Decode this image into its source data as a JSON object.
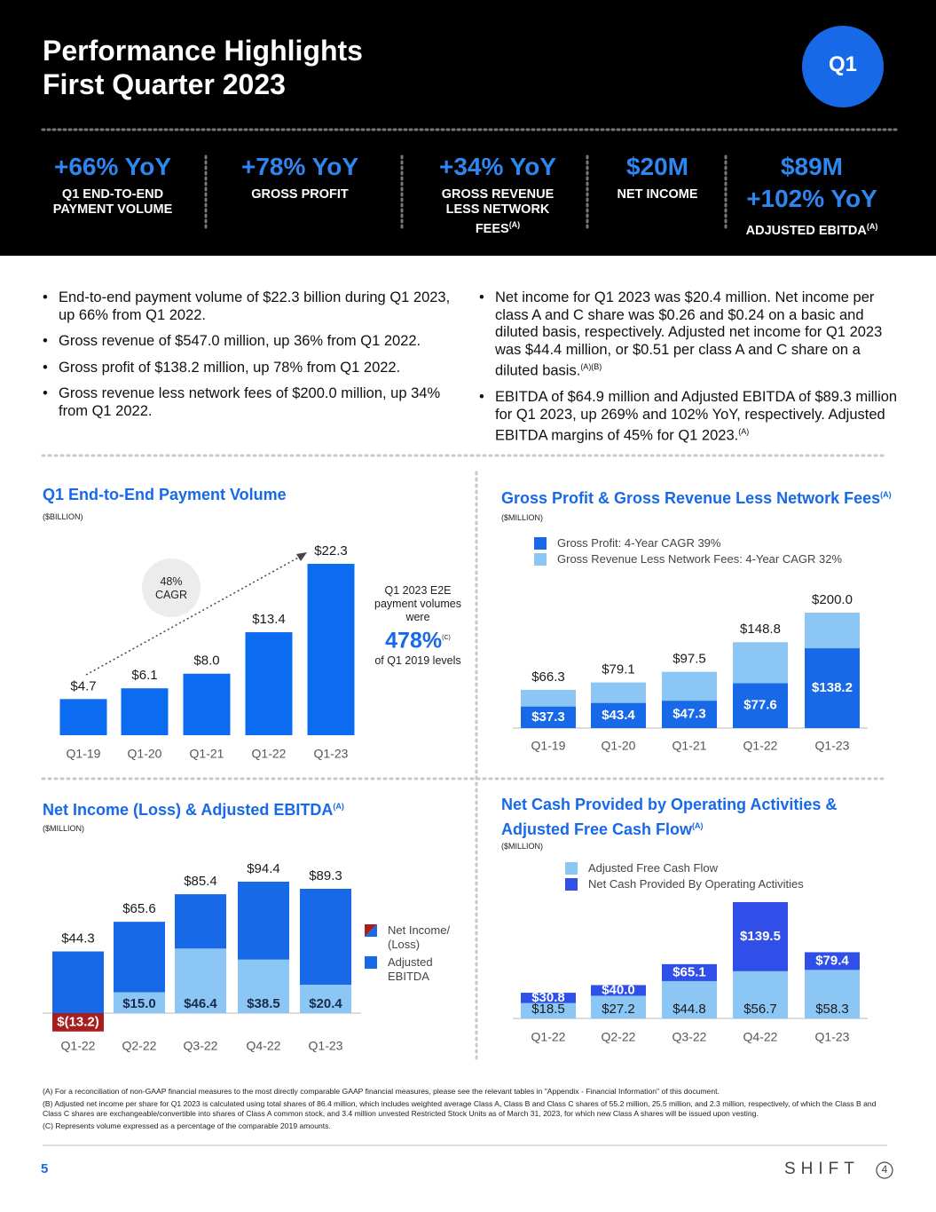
{
  "header": {
    "title": [
      "Performance Highlights",
      "First Quarter 2023"
    ],
    "badge": "Q1"
  },
  "kpis": [
    {
      "values": [
        "+66% YoY"
      ],
      "label": "Q1 END-TO-END PAYMENT VOLUME"
    },
    {
      "values": [
        "+78% YoY"
      ],
      "label": "GROSS PROFIT"
    },
    {
      "values": [
        "+34% YoY"
      ],
      "label": "GROSS REVENUE LESS NETWORK FEES",
      "sup": "(A)"
    },
    {
      "values": [
        "$20M"
      ],
      "label": "NET INCOME"
    },
    {
      "values": [
        "$89M",
        "+102% YoY"
      ],
      "label": "ADJUSTED EBITDA",
      "sup": "(A)"
    }
  ],
  "bullets": {
    "left": [
      {
        "text": "End-to-end payment volume of $22.3 billion during Q1 2023, up 66% from Q1 2022."
      },
      {
        "text": "Gross revenue of $547.0 million, up 36% from Q1 2022."
      },
      {
        "text": "Gross profit of $138.2 million, up 78% from Q1 2022."
      },
      {
        "text": "Gross revenue less network fees of $200.0 million, up 34% from Q1 2022."
      }
    ],
    "right": [
      {
        "text": "Net income for Q1 2023 was $20.4 million. Net income per class A and C share was $0.26 and $0.24 on a basic and diluted basis, respectively. Adjusted net income for Q1 2023 was $44.4 million, or $0.51 per class A and C share on a diluted basis.",
        "sup": "(A)(B)"
      },
      {
        "text": "EBITDA of $64.9 million and Adjusted EBITDA of $89.3 million for Q1 2023, up 269% and 102% YoY, respectively. Adjusted EBITDA margins of 45% for Q1 2023.",
        "sup": "(A)"
      }
    ]
  },
  "chart_data": [
    {
      "type": "bar",
      "title": "Q1 End-to-End Payment Volume",
      "subtitle": "($BILLION)",
      "categories": [
        "Q1-19",
        "Q1-20",
        "Q1-21",
        "Q1-22",
        "Q1-23"
      ],
      "values": [
        4.7,
        6.1,
        8.0,
        13.4,
        22.3
      ],
      "value_labels": [
        "$4.7",
        "$6.1",
        "$8.0",
        "$13.4",
        "$22.3"
      ],
      "color": "#0b6cf2",
      "cagr_label": [
        "48%",
        "CAGR"
      ],
      "callout": {
        "text": "Q1 2023 E2E payment volumes were",
        "highlight": "478%",
        "highlight_note": "(C)",
        "after": "of Q1 2019 levels"
      }
    },
    {
      "type": "bar",
      "title": "Gross Profit & Gross Revenue Less Network Fees",
      "title_sup": "(A)",
      "subtitle": "($MILLION)",
      "categories": [
        "Q1-19",
        "Q1-20",
        "Q1-21",
        "Q1-22",
        "Q1-23"
      ],
      "series": [
        {
          "name": "Gross Profit: 4-Year CAGR 39%",
          "color": "#1769e8",
          "values": [
            37.3,
            43.4,
            47.3,
            77.6,
            138.2
          ],
          "value_labels": [
            "$37.3",
            "$43.4",
            "$47.3",
            "$77.6",
            "$138.2"
          ]
        },
        {
          "name": "Gross Revenue Less Network Fees: 4-Year CAGR 32%",
          "color": "#8cc6f5",
          "values": [
            66.3,
            79.1,
            97.5,
            148.8,
            200.0
          ],
          "value_labels": [
            "$66.3",
            "$79.1",
            "$97.5",
            "$148.8",
            "$200.0"
          ]
        }
      ]
    },
    {
      "type": "bar",
      "title": "Net Income (Loss) & Adjusted EBITDA",
      "title_sup": "(A)",
      "subtitle": "($MILLION)",
      "categories": [
        "Q1-22",
        "Q2-22",
        "Q3-22",
        "Q4-22",
        "Q1-23"
      ],
      "series": [
        {
          "name": "Net Income/ (Loss)",
          "color": "#8cc6f5",
          "negative_color": "#a81d1d",
          "values": [
            -13.2,
            15.0,
            46.4,
            38.5,
            20.4
          ],
          "value_labels": [
            "$(13.2)",
            "$15.0",
            "$46.4",
            "$38.5",
            "$20.4"
          ]
        },
        {
          "name": "Adjusted EBITDA",
          "color": "#1769e8",
          "values": [
            44.3,
            65.6,
            85.4,
            94.4,
            89.3
          ],
          "value_labels": [
            "$44.3",
            "$65.6",
            "$85.4",
            "$94.4",
            "$89.3"
          ]
        }
      ]
    },
    {
      "type": "bar",
      "title": "Net Cash Provided by Operating Activities & Adjusted Free Cash Flow",
      "title_sup": "(A)",
      "subtitle": "($MILLION)",
      "categories": [
        "Q1-22",
        "Q2-22",
        "Q3-22",
        "Q4-22",
        "Q1-23"
      ],
      "series": [
        {
          "name": "Adjusted Free Cash Flow",
          "color": "#8cc6f5",
          "values": [
            18.5,
            27.2,
            44.8,
            56.7,
            58.3
          ],
          "value_labels": [
            "$18.5",
            "$27.2",
            "$44.8",
            "$56.7",
            "$58.3"
          ]
        },
        {
          "name": "Net Cash Provided By Operating Activities",
          "color": "#2f4fe8",
          "values": [
            30.8,
            40.0,
            65.1,
            139.5,
            79.4
          ],
          "value_labels": [
            "$30.8",
            "$40.0",
            "$65.1",
            "$139.5",
            "$79.4"
          ]
        }
      ]
    }
  ],
  "footnotes": [
    "(A) For a reconciliation of non-GAAP financial measures to the most directly comparable GAAP financial measures, please see the relevant tables in \"Appendix - Financial Information\" of this document.",
    "(B) Adjusted net income per share for Q1 2023 is calculated using total shares of 86.4 million, which includes weighted average Class A, Class B and Class C shares of 55.2 million, 25.5 million, and 2.3 million, respectively, of which the Class B and Class C shares are exchangeable/convertible into shares of Class A common stock, and 3.4 million unvested Restricted Stock Units as of March 31, 2023, for which new Class A shares will be issued upon vesting.",
    "(C) Represents volume expressed as a percentage of the comparable 2019 amounts."
  ],
  "page_number": "5",
  "logo": {
    "text": "SHIFT",
    "mark": "4"
  }
}
